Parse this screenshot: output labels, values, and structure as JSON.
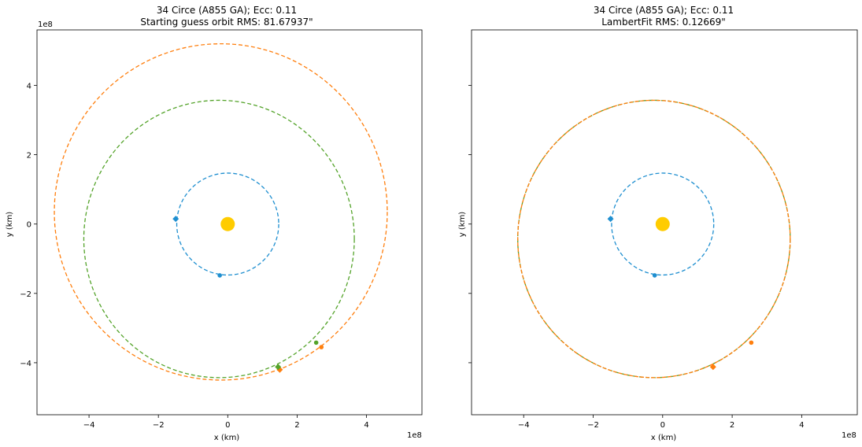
{
  "chart_data": [
    {
      "type": "scatter",
      "title": "34 Circe (A855 GA); Ecc: 0.11",
      "subtitle": "Starting guess orbit RMS: 81.67937\"",
      "xlabel": "x (km)",
      "ylabel": "y (km)",
      "xlim": [
        -5.5,
        5.6
      ],
      "ylim": [
        -5.5,
        5.6
      ],
      "axis_multiplier": "1e8",
      "xticks": [
        "−4",
        "−2",
        "0",
        "2",
        "4"
      ],
      "yticks": [
        "4",
        "2",
        "0",
        "−2",
        "−4"
      ],
      "sun": {
        "x": 0,
        "y": 0,
        "color": "#ffcc00"
      },
      "orbits": [
        {
          "color": "#1f8fd0",
          "cx": 0.0,
          "cy": 0.0,
          "rx": 1.47,
          "ry": 1.47
        },
        {
          "color": "#ff7f0e",
          "cx": -0.2,
          "cy": 0.35,
          "rx": 4.8,
          "ry": 4.85
        },
        {
          "color": "#54a32a",
          "cx": -0.25,
          "cy": -0.43,
          "rx": 3.9,
          "ry": 4.0
        }
      ],
      "points": [
        {
          "color": "#1f8fd0",
          "marker": "diamond",
          "x": -1.5,
          "y": 0.15
        },
        {
          "color": "#1f8fd0",
          "marker": "circle",
          "x": -0.23,
          "y": -1.48
        },
        {
          "color": "#ff7f0e",
          "marker": "diamond",
          "x": 1.5,
          "y": -4.2
        },
        {
          "color": "#ff7f0e",
          "marker": "circle",
          "x": 2.7,
          "y": -3.55
        },
        {
          "color": "#54a32a",
          "marker": "diamond",
          "x": 1.45,
          "y": -4.12
        },
        {
          "color": "#54a32a",
          "marker": "circle",
          "x": 2.55,
          "y": -3.42
        }
      ]
    },
    {
      "type": "scatter",
      "title": "34 Circe (A855 GA); Ecc: 0.11",
      "subtitle": "LambertFit RMS: 0.12669\"",
      "xlabel": "x (km)",
      "ylabel": "y (km)",
      "xlim": [
        -5.5,
        5.6
      ],
      "ylim": [
        -5.5,
        5.6
      ],
      "axis_multiplier": "1e8",
      "xticks": [
        "−4",
        "−2",
        "0",
        "2",
        "4"
      ],
      "yticks": [],
      "sun": {
        "x": 0,
        "y": 0,
        "color": "#ffcc00"
      },
      "orbits": [
        {
          "color": "#1f8fd0",
          "cx": 0.0,
          "cy": 0.0,
          "rx": 1.47,
          "ry": 1.47
        },
        {
          "color": "#54a32a",
          "cx": -0.25,
          "cy": -0.43,
          "rx": 3.92,
          "ry": 4.0
        },
        {
          "color": "#ff7f0e",
          "cx": -0.25,
          "cy": -0.43,
          "rx": 3.92,
          "ry": 4.0
        }
      ],
      "points": [
        {
          "color": "#1f8fd0",
          "marker": "diamond",
          "x": -1.5,
          "y": 0.15
        },
        {
          "color": "#1f8fd0",
          "marker": "circle",
          "x": -0.23,
          "y": -1.48
        },
        {
          "color": "#ff7f0e",
          "marker": "diamond",
          "x": 1.45,
          "y": -4.12
        },
        {
          "color": "#ff7f0e",
          "marker": "circle",
          "x": 2.55,
          "y": -3.42
        }
      ]
    }
  ]
}
